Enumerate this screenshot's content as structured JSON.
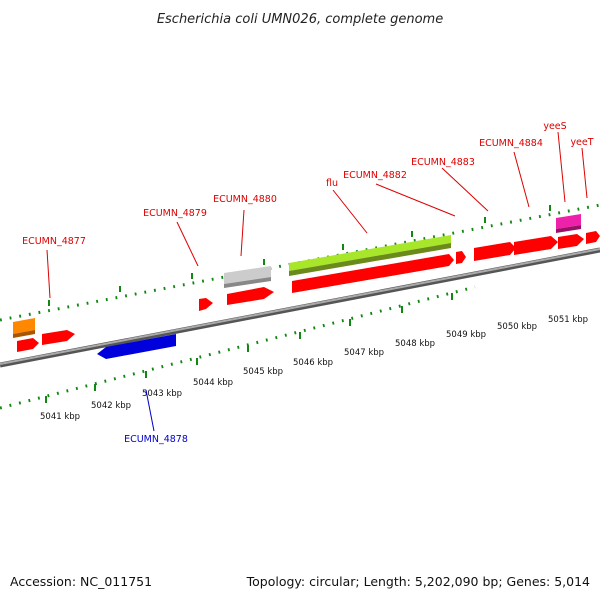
{
  "title": "Escherichia coli UMN026, complete genome",
  "footer": {
    "accession": "Accession: NC_011751",
    "summary": "Topology: circular; Length: 5,202,090 bp; Genes: 5,014"
  },
  "kbp_labels": [
    "5041 kbp",
    "5042 kbp",
    "5043 kbp",
    "5044 kbp",
    "5045 kbp",
    "5046 kbp",
    "5047 kbp",
    "5048 kbp",
    "5049 kbp",
    "5050 kbp",
    "5051 kbp"
  ],
  "gene_labels": [
    "ECUMN_4877",
    "ECUMN_4878",
    "ECUMN_4879",
    "ECUMN_4880",
    "flu",
    "ECUMN_4882",
    "ECUMN_4883",
    "ECUMN_4884",
    "yeeS",
    "yeeT"
  ],
  "colors": {
    "forward_gene": "#ff0000",
    "reverse_gene": "#0000dd",
    "flu_gene": "#99dd22",
    "pseudo_gene": "#bbbbbb",
    "orange_feature": "#ff8800",
    "pink_feature": "#ee22aa",
    "tick": "#118811",
    "backbone": "#888888",
    "forward_label": "#dd0000",
    "reverse_label": "#0000cc"
  }
}
